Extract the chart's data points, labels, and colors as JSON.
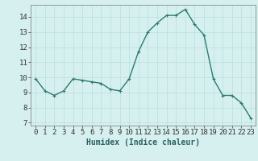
{
  "x": [
    0,
    1,
    2,
    3,
    4,
    5,
    6,
    7,
    8,
    9,
    10,
    11,
    12,
    13,
    14,
    15,
    16,
    17,
    18,
    19,
    20,
    21,
    22,
    23
  ],
  "y": [
    9.9,
    9.1,
    8.8,
    9.1,
    9.9,
    9.8,
    9.7,
    9.6,
    9.2,
    9.1,
    9.9,
    11.7,
    13.0,
    13.6,
    14.1,
    14.1,
    14.5,
    13.5,
    12.8,
    9.9,
    8.8,
    8.8,
    8.3,
    7.3
  ],
  "line_color": "#2d7a6e",
  "marker": "+",
  "marker_size": 3,
  "bg_color": "#d6f0f0",
  "grid_color": "#b8dede",
  "xlabel": "Humidex (Indice chaleur)",
  "ylabel": "",
  "title": "",
  "xlim": [
    -0.5,
    23.5
  ],
  "ylim": [
    6.8,
    14.8
  ],
  "yticks": [
    7,
    8,
    9,
    10,
    11,
    12,
    13,
    14
  ],
  "xticks": [
    0,
    1,
    2,
    3,
    4,
    5,
    6,
    7,
    8,
    9,
    10,
    11,
    12,
    13,
    14,
    15,
    16,
    17,
    18,
    19,
    20,
    21,
    22,
    23
  ],
  "xlabel_fontsize": 7,
  "tick_fontsize": 6.5,
  "line_width": 1.0
}
